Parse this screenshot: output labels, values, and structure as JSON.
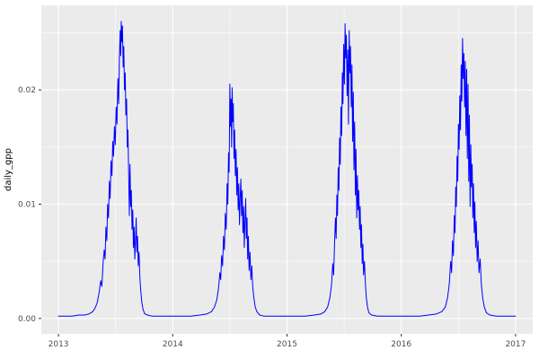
{
  "chart_data": {
    "type": "line",
    "title": "",
    "xlabel": "",
    "ylabel": "daily_gpp",
    "legend": "none",
    "grid": "on",
    "panel_bg": "#ebebeb",
    "grid_color": "#ffffff",
    "line_color": "#0000ff",
    "tick_label_color": "#4d4d4d",
    "axis_title_color": "#000000",
    "xlim": [
      2012.85,
      2017.15
    ],
    "ylim": [
      -0.00135,
      0.0274
    ],
    "x_ticks": {
      "values": [
        2013,
        2014,
        2015,
        2016,
        2017
      ],
      "labels": [
        "2013",
        "2014",
        "2015",
        "2016",
        "2017"
      ]
    },
    "y_ticks": {
      "values": [
        0,
        0.01,
        0.02
      ],
      "labels": [
        "0.00",
        "0.01",
        "0.02"
      ]
    },
    "x_minor": [
      2013.5,
      2014.5,
      2015.5,
      2016.5
    ],
    "y_minor": [
      0.005,
      0.015,
      0.025
    ],
    "series": [
      {
        "name": "daily_gpp",
        "points": [
          [
            2013.0,
            0.0002
          ],
          [
            2013.06,
            0.0002
          ],
          [
            2013.12,
            0.0002
          ],
          [
            2013.18,
            0.0003
          ],
          [
            2013.23,
            0.0003
          ],
          [
            2013.27,
            0.0004
          ],
          [
            2013.3,
            0.0006
          ],
          [
            2013.32,
            0.0009
          ],
          [
            2013.34,
            0.0014
          ],
          [
            2013.355,
            0.0022
          ],
          [
            2013.37,
            0.0033
          ],
          [
            2013.38,
            0.0028
          ],
          [
            2013.39,
            0.0048
          ],
          [
            2013.4,
            0.006
          ],
          [
            2013.408,
            0.0052
          ],
          [
            2013.415,
            0.008
          ],
          [
            2013.423,
            0.0068
          ],
          [
            2013.43,
            0.01
          ],
          [
            2013.438,
            0.0088
          ],
          [
            2013.445,
            0.012
          ],
          [
            2013.452,
            0.0105
          ],
          [
            2013.46,
            0.0138
          ],
          [
            2013.468,
            0.0125
          ],
          [
            2013.475,
            0.0155
          ],
          [
            2013.482,
            0.0142
          ],
          [
            2013.49,
            0.0168
          ],
          [
            2013.497,
            0.0152
          ],
          [
            2013.505,
            0.0185
          ],
          [
            2013.512,
            0.017
          ],
          [
            2013.52,
            0.021
          ],
          [
            2013.527,
            0.0188
          ],
          [
            2013.533,
            0.0228
          ],
          [
            2013.54,
            0.0252
          ],
          [
            2013.545,
            0.023
          ],
          [
            2013.55,
            0.026
          ],
          [
            2013.555,
            0.0242
          ],
          [
            2013.56,
            0.0256
          ],
          [
            2013.566,
            0.022
          ],
          [
            2013.572,
            0.0238
          ],
          [
            2013.578,
            0.02
          ],
          [
            2013.584,
            0.0215
          ],
          [
            2013.59,
            0.0178
          ],
          [
            2013.596,
            0.0192
          ],
          [
            2013.602,
            0.015
          ],
          [
            2013.608,
            0.0165
          ],
          [
            2013.614,
            0.0128
          ],
          [
            2013.62,
            0.009
          ],
          [
            2013.626,
            0.0135
          ],
          [
            2013.632,
            0.0098
          ],
          [
            2013.638,
            0.0112
          ],
          [
            2013.644,
            0.0078
          ],
          [
            2013.65,
            0.0095
          ],
          [
            2013.656,
            0.0062
          ],
          [
            2013.662,
            0.008
          ],
          [
            2013.668,
            0.0052
          ],
          [
            2013.674,
            0.0068
          ],
          [
            2013.68,
            0.0088
          ],
          [
            2013.686,
            0.0058
          ],
          [
            2013.692,
            0.0072
          ],
          [
            2013.698,
            0.0046
          ],
          [
            2013.705,
            0.0058
          ],
          [
            2013.712,
            0.0036
          ],
          [
            2013.72,
            0.0024
          ],
          [
            2013.73,
            0.0014
          ],
          [
            2013.74,
            0.0008
          ],
          [
            2013.755,
            0.0004
          ],
          [
            2013.78,
            0.0003
          ],
          [
            2013.82,
            0.0002
          ],
          [
            2013.88,
            0.0002
          ],
          [
            2013.95,
            0.0002
          ],
          [
            2014.0,
            0.0002
          ],
          [
            2014.08,
            0.0002
          ],
          [
            2014.16,
            0.0002
          ],
          [
            2014.24,
            0.0003
          ],
          [
            2014.3,
            0.0004
          ],
          [
            2014.34,
            0.0006
          ],
          [
            2014.365,
            0.001
          ],
          [
            2014.385,
            0.0016
          ],
          [
            2014.4,
            0.0026
          ],
          [
            2014.412,
            0.004
          ],
          [
            2014.42,
            0.0034
          ],
          [
            2014.428,
            0.0055
          ],
          [
            2014.436,
            0.0046
          ],
          [
            2014.444,
            0.0072
          ],
          [
            2014.452,
            0.006
          ],
          [
            2014.46,
            0.0092
          ],
          [
            2014.468,
            0.0078
          ],
          [
            2014.476,
            0.0118
          ],
          [
            2014.482,
            0.01
          ],
          [
            2014.488,
            0.0145
          ],
          [
            2014.494,
            0.0128
          ],
          [
            2014.5,
            0.0205
          ],
          [
            2014.505,
            0.0168
          ],
          [
            2014.51,
            0.0192
          ],
          [
            2014.515,
            0.015
          ],
          [
            2014.52,
            0.0202
          ],
          [
            2014.525,
            0.0172
          ],
          [
            2014.53,
            0.0188
          ],
          [
            2014.536,
            0.014
          ],
          [
            2014.542,
            0.0165
          ],
          [
            2014.548,
            0.0125
          ],
          [
            2014.554,
            0.0148
          ],
          [
            2014.56,
            0.0108
          ],
          [
            2014.566,
            0.0132
          ],
          [
            2014.572,
            0.0095
          ],
          [
            2014.578,
            0.0118
          ],
          [
            2014.584,
            0.0082
          ],
          [
            2014.59,
            0.0105
          ],
          [
            2014.596,
            0.0122
          ],
          [
            2014.602,
            0.009
          ],
          [
            2014.608,
            0.0112
          ],
          [
            2014.614,
            0.0075
          ],
          [
            2014.62,
            0.0098
          ],
          [
            2014.626,
            0.0062
          ],
          [
            2014.632,
            0.0085
          ],
          [
            2014.638,
            0.0105
          ],
          [
            2014.644,
            0.007
          ],
          [
            2014.65,
            0.0088
          ],
          [
            2014.656,
            0.0052
          ],
          [
            2014.662,
            0.0072
          ],
          [
            2014.668,
            0.0042
          ],
          [
            2014.676,
            0.0058
          ],
          [
            2014.684,
            0.0034
          ],
          [
            2014.692,
            0.0046
          ],
          [
            2014.7,
            0.0028
          ],
          [
            2014.71,
            0.0018
          ],
          [
            2014.722,
            0.001
          ],
          [
            2014.736,
            0.0006
          ],
          [
            2014.76,
            0.0003
          ],
          [
            2014.8,
            0.0002
          ],
          [
            2014.87,
            0.0002
          ],
          [
            2014.94,
            0.0002
          ],
          [
            2015.0,
            0.0002
          ],
          [
            2015.08,
            0.0002
          ],
          [
            2015.16,
            0.0002
          ],
          [
            2015.24,
            0.0003
          ],
          [
            2015.3,
            0.0004
          ],
          [
            2015.33,
            0.0006
          ],
          [
            2015.355,
            0.001
          ],
          [
            2015.375,
            0.0018
          ],
          [
            2015.39,
            0.003
          ],
          [
            2015.4,
            0.0048
          ],
          [
            2015.408,
            0.0038
          ],
          [
            2015.416,
            0.0065
          ],
          [
            2015.424,
            0.0088
          ],
          [
            2015.43,
            0.007
          ],
          [
            2015.436,
            0.0108
          ],
          [
            2015.442,
            0.009
          ],
          [
            2015.448,
            0.0132
          ],
          [
            2015.454,
            0.0112
          ],
          [
            2015.46,
            0.0158
          ],
          [
            2015.466,
            0.0135
          ],
          [
            2015.472,
            0.0185
          ],
          [
            2015.478,
            0.016
          ],
          [
            2015.484,
            0.0215
          ],
          [
            2015.49,
            0.0188
          ],
          [
            2015.496,
            0.024
          ],
          [
            2015.502,
            0.0205
          ],
          [
            2015.508,
            0.0258
          ],
          [
            2015.514,
            0.0228
          ],
          [
            2015.52,
            0.0248
          ],
          [
            2015.526,
            0.0195
          ],
          [
            2015.532,
            0.0235
          ],
          [
            2015.538,
            0.017
          ],
          [
            2015.544,
            0.0252
          ],
          [
            2015.55,
            0.0215
          ],
          [
            2015.556,
            0.0238
          ],
          [
            2015.562,
            0.0185
          ],
          [
            2015.568,
            0.0222
          ],
          [
            2015.574,
            0.0155
          ],
          [
            2015.58,
            0.0198
          ],
          [
            2015.586,
            0.013
          ],
          [
            2015.592,
            0.0172
          ],
          [
            2015.598,
            0.0108
          ],
          [
            2015.604,
            0.0148
          ],
          [
            2015.61,
            0.0088
          ],
          [
            2015.616,
            0.0125
          ],
          [
            2015.622,
            0.0095
          ],
          [
            2015.628,
            0.0112
          ],
          [
            2015.634,
            0.0078
          ],
          [
            2015.64,
            0.0098
          ],
          [
            2015.646,
            0.0062
          ],
          [
            2015.652,
            0.0082
          ],
          [
            2015.658,
            0.0048
          ],
          [
            2015.664,
            0.0065
          ],
          [
            2015.67,
            0.0038
          ],
          [
            2015.678,
            0.005
          ],
          [
            2015.686,
            0.003
          ],
          [
            2015.694,
            0.0018
          ],
          [
            2015.704,
            0.001
          ],
          [
            2015.716,
            0.0005
          ],
          [
            2015.74,
            0.0003
          ],
          [
            2015.79,
            0.0002
          ],
          [
            2015.87,
            0.0002
          ],
          [
            2015.94,
            0.0002
          ],
          [
            2016.0,
            0.0002
          ],
          [
            2016.08,
            0.0002
          ],
          [
            2016.16,
            0.0002
          ],
          [
            2016.24,
            0.0003
          ],
          [
            2016.31,
            0.0004
          ],
          [
            2016.355,
            0.0006
          ],
          [
            2016.385,
            0.001
          ],
          [
            2016.405,
            0.0018
          ],
          [
            2016.42,
            0.003
          ],
          [
            2016.432,
            0.005
          ],
          [
            2016.44,
            0.004
          ],
          [
            2016.448,
            0.0068
          ],
          [
            2016.456,
            0.0055
          ],
          [
            2016.464,
            0.009
          ],
          [
            2016.47,
            0.0075
          ],
          [
            2016.476,
            0.0115
          ],
          [
            2016.482,
            0.0098
          ],
          [
            2016.488,
            0.0142
          ],
          [
            2016.494,
            0.012
          ],
          [
            2016.5,
            0.017
          ],
          [
            2016.506,
            0.0148
          ],
          [
            2016.512,
            0.0195
          ],
          [
            2016.518,
            0.0165
          ],
          [
            2016.524,
            0.0222
          ],
          [
            2016.53,
            0.019
          ],
          [
            2016.536,
            0.0245
          ],
          [
            2016.542,
            0.021
          ],
          [
            2016.548,
            0.0232
          ],
          [
            2016.554,
            0.0185
          ],
          [
            2016.56,
            0.0225
          ],
          [
            2016.566,
            0.016
          ],
          [
            2016.572,
            0.0218
          ],
          [
            2016.578,
            0.014
          ],
          [
            2016.584,
            0.0205
          ],
          [
            2016.59,
            0.012
          ],
          [
            2016.596,
            0.0178
          ],
          [
            2016.602,
            0.0098
          ],
          [
            2016.608,
            0.0152
          ],
          [
            2016.614,
            0.0115
          ],
          [
            2016.62,
            0.0135
          ],
          [
            2016.626,
            0.0088
          ],
          [
            2016.632,
            0.0118
          ],
          [
            2016.638,
            0.0075
          ],
          [
            2016.644,
            0.0102
          ],
          [
            2016.65,
            0.0062
          ],
          [
            2016.656,
            0.0085
          ],
          [
            2016.664,
            0.005
          ],
          [
            2016.672,
            0.0068
          ],
          [
            2016.68,
            0.004
          ],
          [
            2016.69,
            0.0052
          ],
          [
            2016.7,
            0.003
          ],
          [
            2016.712,
            0.0018
          ],
          [
            2016.726,
            0.001
          ],
          [
            2016.744,
            0.0005
          ],
          [
            2016.775,
            0.0003
          ],
          [
            2016.83,
            0.0002
          ],
          [
            2016.9,
            0.0002
          ],
          [
            2016.96,
            0.0002
          ],
          [
            2017.0,
            0.0002
          ]
        ]
      }
    ]
  }
}
